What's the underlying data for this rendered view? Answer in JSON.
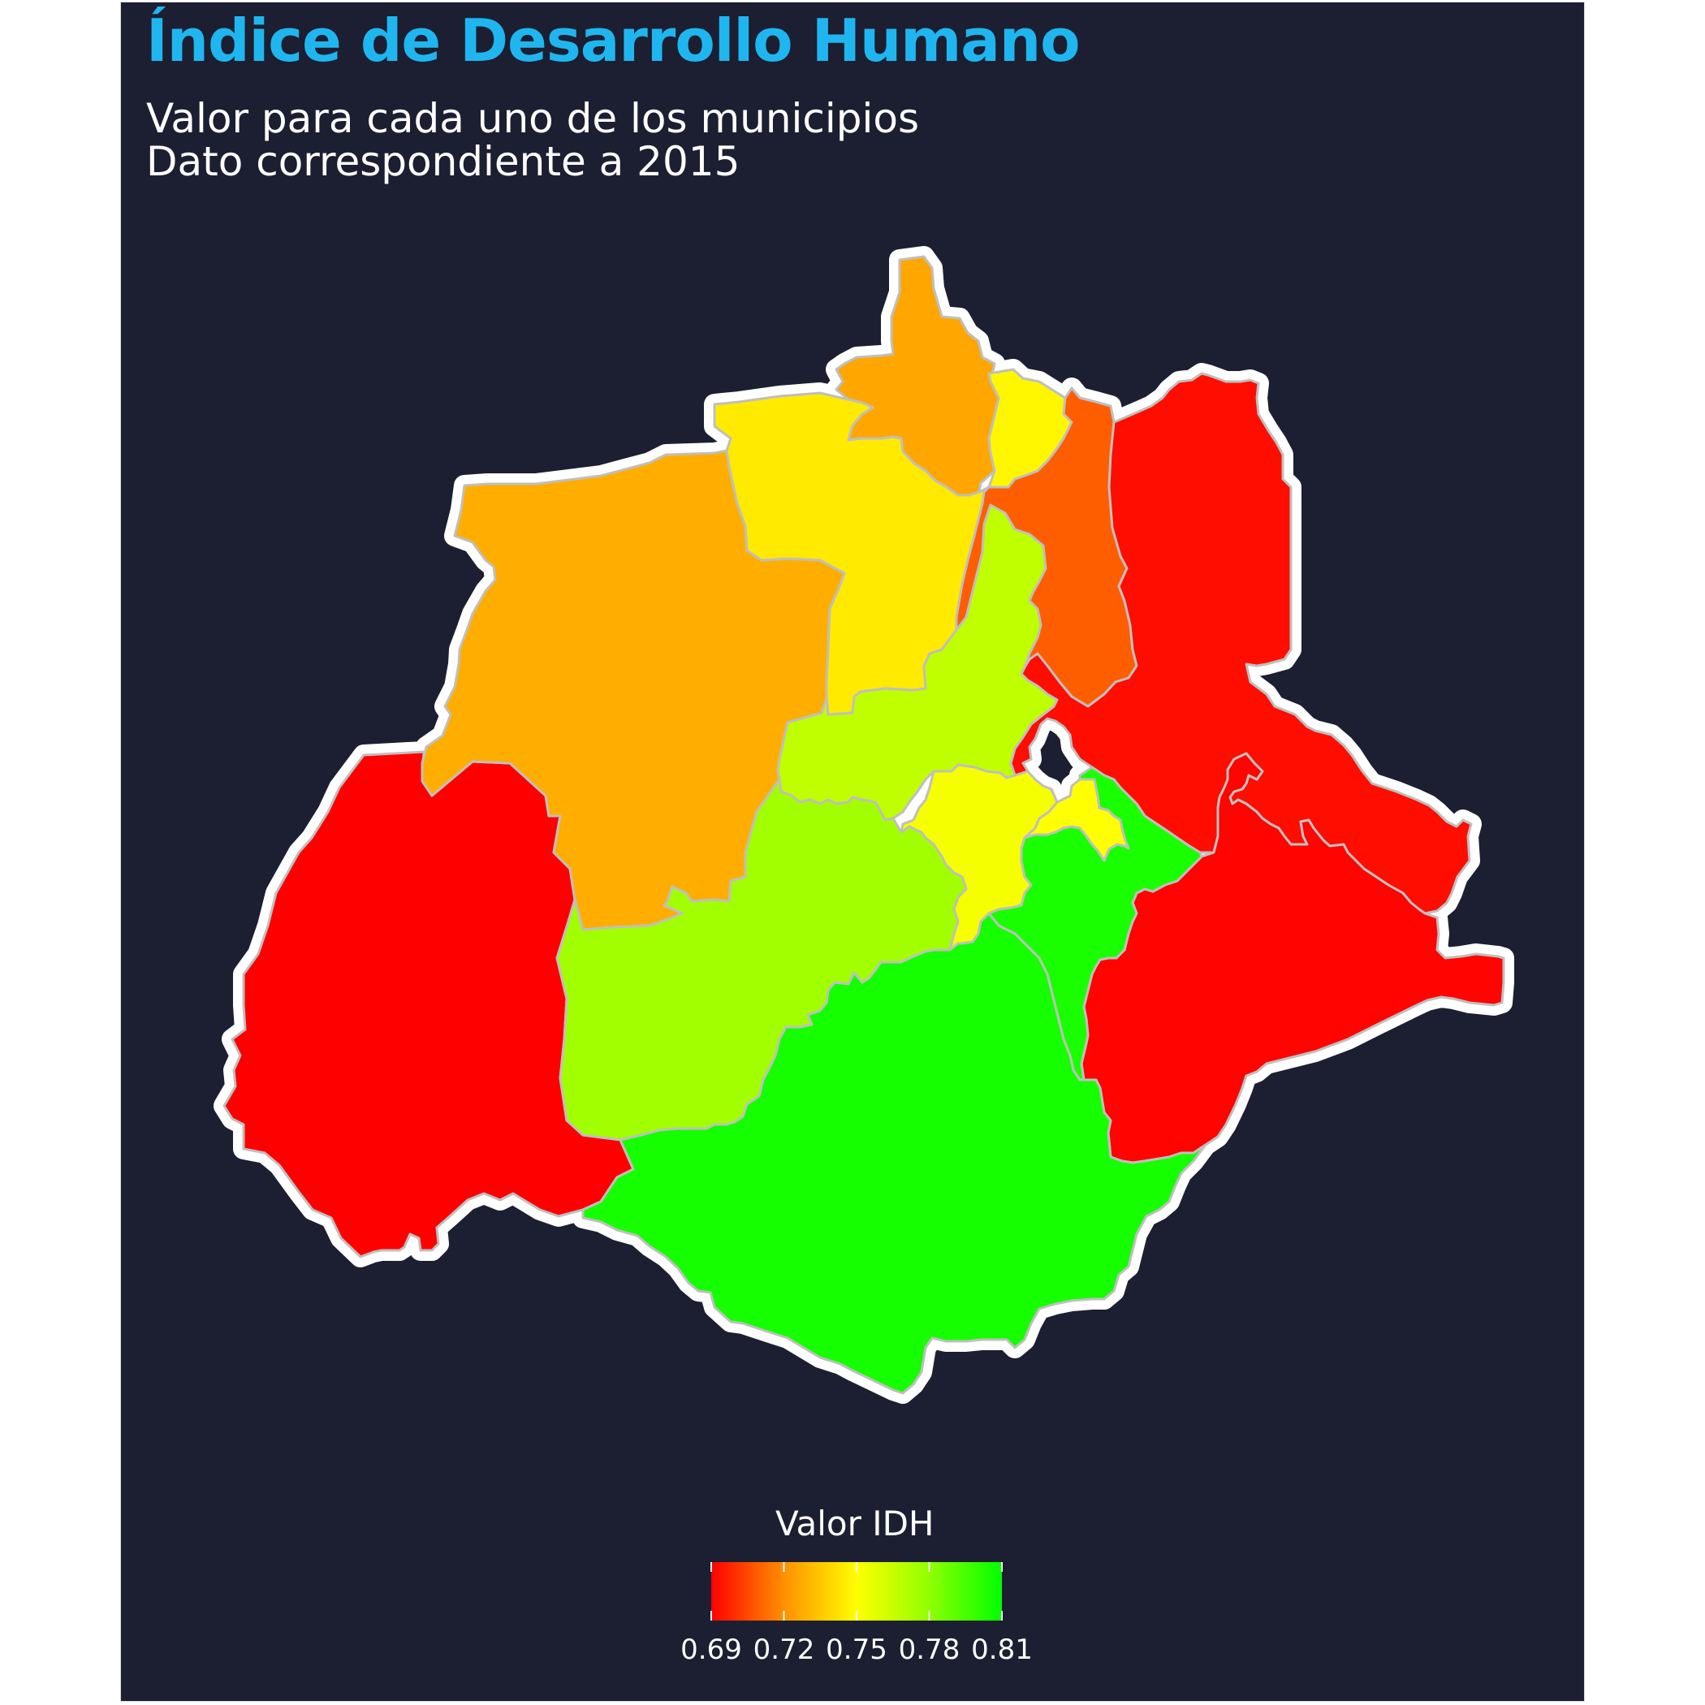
{
  "title": "Índice de Desarrollo Humano",
  "subtitle_line1": "Valor para cada uno de los municipios",
  "subtitle_line2": "Dato correspondiente a 2015",
  "colors": {
    "background": "#1c1f31",
    "title": "#1fb6f0",
    "outline": "#ffffff",
    "border": "#bfbfbf"
  },
  "chart_data": {
    "type": "choropleth",
    "variable": "Valor IDH",
    "scale": {
      "min": 0.69,
      "max": 0.81,
      "low_color": "#ff0000",
      "mid_color": "#ffff00",
      "high_color": "#00ff00"
    },
    "regions": [
      {
        "id": "r-west",
        "value": 0.69
      },
      {
        "id": "r-northwest",
        "value": 0.731
      },
      {
        "id": "r-north-top",
        "value": 0.729
      },
      {
        "id": "r-north-center",
        "value": 0.745
      },
      {
        "id": "r-north-small",
        "value": 0.748
      },
      {
        "id": "r-northeast",
        "value": 0.712
      },
      {
        "id": "r-east",
        "value": 0.693
      },
      {
        "id": "r-southeast",
        "value": 0.691
      },
      {
        "id": "r-center-north",
        "value": 0.765
      },
      {
        "id": "r-center",
        "value": 0.752
      },
      {
        "id": "r-center-east",
        "value": 0.75
      },
      {
        "id": "r-center-west",
        "value": 0.772
      },
      {
        "id": "r-east-small",
        "value": 0.804
      },
      {
        "id": "r-south",
        "value": 0.805
      }
    ]
  },
  "legend": {
    "title": "Valor IDH",
    "ticks": [
      "0.69",
      "0.72",
      "0.75",
      "0.78",
      "0.81"
    ]
  }
}
